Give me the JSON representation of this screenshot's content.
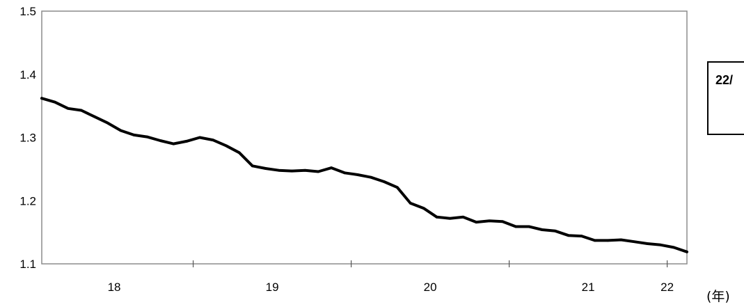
{
  "chart_data": {
    "type": "line",
    "title": "",
    "xlabel": "",
    "ylabel": "",
    "unit_label": "(年)",
    "ylim": [
      1.1,
      1.5
    ],
    "yticks": [
      "1.1",
      "1.2",
      "1.3",
      "1.4",
      "1.5"
    ],
    "xticks": [
      {
        "label": "18",
        "t": 5.5
      },
      {
        "label": "19",
        "t": 17.5
      },
      {
        "label": "20",
        "t": 29.5
      },
      {
        "label": "21",
        "t": 41.5
      },
      {
        "label": "22",
        "t": 47.5
      }
    ],
    "grid": false,
    "legend": "none",
    "line_color": "#000000",
    "series": [
      {
        "values": [
          1.362,
          1.356,
          1.346,
          1.343,
          1.333,
          1.323,
          1.311,
          1.304,
          1.301,
          1.295,
          1.29,
          1.294,
          1.3,
          1.296,
          1.287,
          1.276,
          1.255,
          1.251,
          1.248,
          1.247,
          1.248,
          1.246,
          1.252,
          1.244,
          1.241,
          1.237,
          1.23,
          1.221,
          1.196,
          1.188,
          1.174,
          1.172,
          1.174,
          1.166,
          1.168,
          1.167,
          1.159,
          1.159,
          1.154,
          1.152,
          1.145,
          1.144,
          1.137,
          1.137,
          1.138,
          1.135,
          1.132,
          1.13,
          1.126,
          1.119
        ]
      }
    ]
  },
  "note": {
    "text": "22/"
  }
}
